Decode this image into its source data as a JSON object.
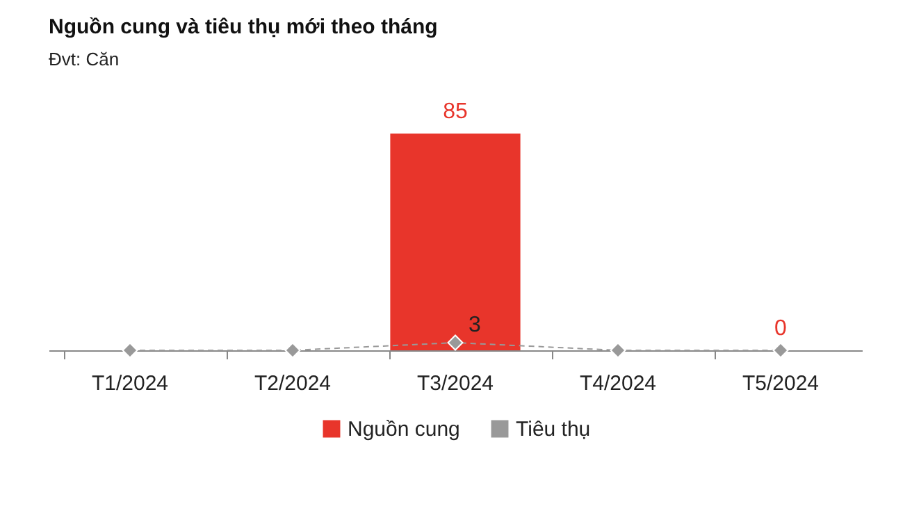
{
  "chart_data": {
    "type": "bar",
    "title": "Nguồn cung và tiêu thụ mới theo tháng",
    "subtitle": "Đvt: Căn",
    "categories": [
      "T1/2024",
      "T2/2024",
      "T3/2024",
      "T4/2024",
      "T5/2024"
    ],
    "series": [
      {
        "name": "Nguồn cung",
        "color": "#e8352b",
        "values": [
          null,
          null,
          85,
          null,
          0
        ],
        "value_labels": [
          null,
          null,
          "85",
          null,
          "0"
        ]
      },
      {
        "name": "Tiêu thụ",
        "type": "line",
        "color": "#999999",
        "values": [
          0,
          0,
          3,
          0,
          0
        ],
        "value_labels": [
          null,
          null,
          "3",
          null,
          null
        ],
        "marker": "diamond",
        "line_style": "dashed"
      }
    ],
    "legend": "bottom",
    "tick_labels": "x",
    "grid": false
  }
}
